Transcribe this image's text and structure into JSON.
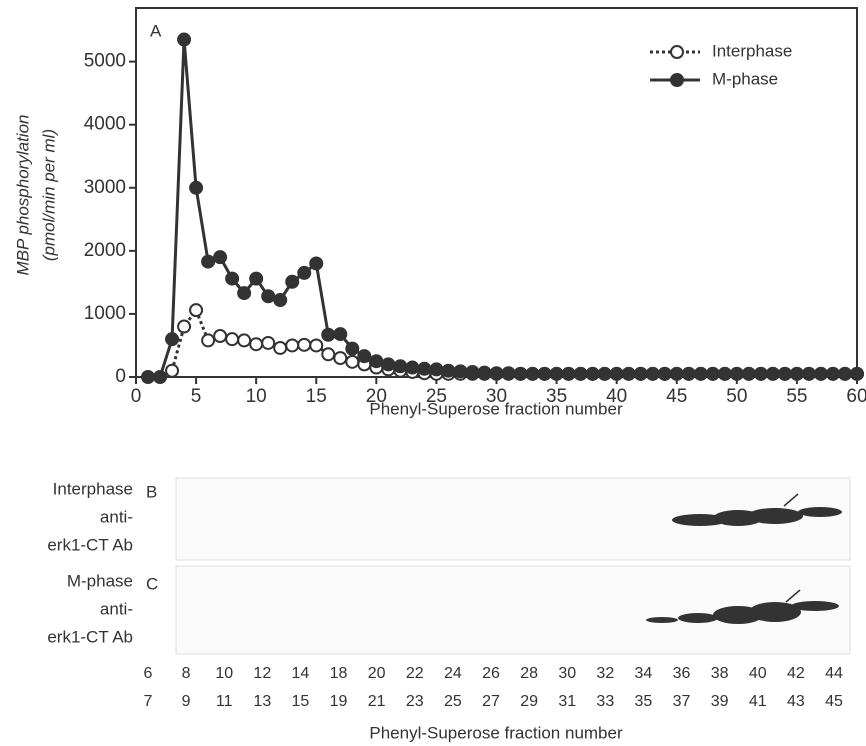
{
  "chart_data": {
    "type": "line",
    "panel": "A",
    "x_label": "Phenyl-Superose fraction number",
    "y_label": [
      "MBP phosphorylation",
      "(pmol/min per ml)"
    ],
    "x": [
      1,
      2,
      3,
      4,
      5,
      6,
      7,
      8,
      9,
      10,
      11,
      12,
      13,
      14,
      15,
      16,
      17,
      18,
      19,
      20,
      21,
      22,
      23,
      24,
      25,
      26,
      27,
      28,
      29,
      30,
      31,
      32,
      33,
      34,
      35,
      36,
      37,
      38,
      39,
      40,
      41,
      42,
      43,
      44,
      45,
      46,
      47,
      48,
      49,
      50,
      51,
      52,
      53,
      54,
      55,
      56,
      57,
      58,
      59,
      60
    ],
    "series": [
      {
        "name": "Interphase",
        "color": "#333333",
        "style": "dotted",
        "values": [
          null,
          null,
          100,
          800,
          1060,
          580,
          650,
          600,
          580,
          520,
          540,
          460,
          500,
          510,
          500,
          360,
          300,
          240,
          200,
          150,
          120,
          100,
          80,
          60,
          50,
          50,
          50,
          50,
          50,
          50,
          50,
          50,
          50,
          50,
          50,
          50,
          50,
          50,
          50,
          50,
          50,
          50,
          50,
          50,
          50,
          50,
          50,
          50,
          50,
          50,
          50,
          50,
          50,
          50,
          50,
          50,
          50,
          50,
          50,
          50
        ]
      },
      {
        "name": "M-phase",
        "color": "#333333",
        "style": "solid",
        "values": [
          0,
          0,
          600,
          5350,
          3000,
          1830,
          1900,
          1560,
          1330,
          1560,
          1280,
          1220,
          1510,
          1650,
          1800,
          670,
          680,
          450,
          330,
          250,
          200,
          170,
          150,
          130,
          120,
          100,
          90,
          80,
          70,
          60,
          60,
          50,
          50,
          50,
          50,
          50,
          50,
          50,
          50,
          50,
          50,
          50,
          50,
          50,
          50,
          50,
          50,
          50,
          50,
          50,
          50,
          50,
          50,
          50,
          50,
          50,
          50,
          50,
          50,
          50
        ]
      }
    ],
    "xlim": [
      0,
      60
    ],
    "xticks": [
      0,
      5,
      10,
      15,
      20,
      25,
      30,
      35,
      40,
      45,
      50,
      55,
      60
    ],
    "ylim": [
      0,
      5850
    ],
    "yticks": [
      0,
      1000,
      2000,
      3000,
      4000,
      5000
    ],
    "legend": "top-right"
  },
  "blots": {
    "panels": [
      {
        "letter": "B",
        "label": [
          "Interphase",
          "anti-",
          "erk1-CT Ab"
        ]
      },
      {
        "letter": "C",
        "label": [
          "M-phase",
          "anti-",
          "erk1-CT Ab"
        ]
      }
    ],
    "lanes_top": [
      6,
      8,
      10,
      12,
      14,
      18,
      20,
      22,
      24,
      26,
      28,
      30,
      32,
      34,
      36,
      38,
      40,
      42,
      44
    ],
    "lanes_bottom": [
      7,
      9,
      11,
      13,
      15,
      19,
      21,
      23,
      25,
      27,
      29,
      31,
      33,
      35,
      37,
      39,
      41,
      43,
      45
    ],
    "x_label": "Phenyl-Superose fraction number"
  }
}
